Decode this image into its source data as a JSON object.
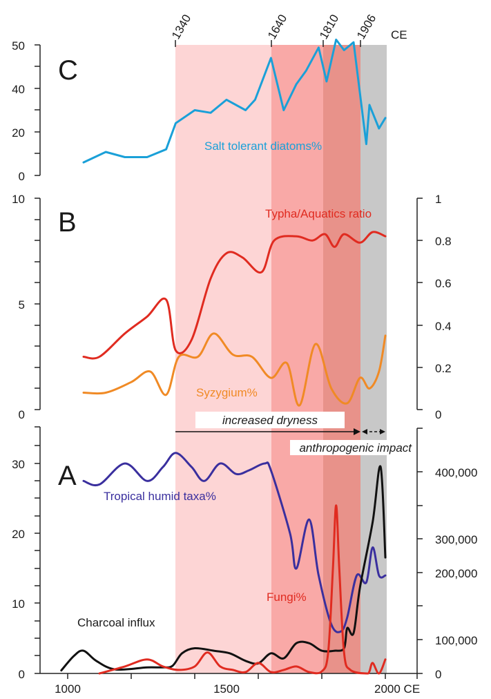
{
  "chart_data": [
    {
      "type": "line",
      "panel": "C",
      "x_unit": "CE",
      "top_labels": [
        "1340",
        "1640",
        "1810",
        "1906"
      ],
      "top_unit": "CE",
      "yticks": [
        "50",
        "40",
        "20",
        "0"
      ],
      "series": [
        {
          "name": "Salt tolerant diatoms%",
          "color": "#1aa0d8",
          "x": [
            1050,
            1120,
            1180,
            1250,
            1310,
            1340,
            1400,
            1450,
            1500,
            1560,
            1590,
            1640,
            1680,
            1720,
            1750,
            1790,
            1815,
            1845,
            1870,
            1900,
            1940,
            1950,
            1960,
            1980,
            2000
          ],
          "y": [
            5,
            9,
            7,
            7,
            10,
            20,
            25,
            24,
            29,
            25,
            29,
            45,
            25,
            35,
            40,
            49,
            36,
            52,
            48,
            51,
            12,
            27,
            24,
            18,
            22
          ]
        }
      ]
    },
    {
      "type": "line",
      "panel": "B",
      "yticks_left": [
        "10",
        "5",
        "0"
      ],
      "yticks_right": [
        "1",
        "0.8",
        "0.6",
        "0.4",
        "0.2",
        "0"
      ],
      "series": [
        {
          "name": "Typha/Aquatics ratio",
          "axis": "right",
          "color": "#e02b20",
          "x": [
            1050,
            1100,
            1180,
            1250,
            1310,
            1340,
            1390,
            1450,
            1500,
            1550,
            1610,
            1650,
            1720,
            1770,
            1810,
            1840,
            1870,
            1920,
            1960,
            2000
          ],
          "y": [
            0.25,
            0.25,
            0.36,
            0.44,
            0.52,
            0.28,
            0.33,
            0.62,
            0.74,
            0.72,
            0.65,
            0.8,
            0.82,
            0.8,
            0.83,
            0.77,
            0.83,
            0.79,
            0.84,
            0.82
          ]
        },
        {
          "name": "Syzygium%",
          "axis": "left",
          "color": "#f08a25",
          "x": [
            1050,
            1120,
            1200,
            1260,
            1310,
            1350,
            1410,
            1460,
            1520,
            1580,
            1640,
            1690,
            1730,
            1780,
            1830,
            1880,
            1920,
            1950,
            1980,
            2000
          ],
          "y": [
            0.8,
            0.8,
            1.3,
            1.8,
            0.7,
            2.5,
            2.5,
            3.6,
            2.6,
            2.5,
            1.5,
            2.2,
            0.2,
            3.1,
            1.0,
            0.3,
            1.5,
            1.0,
            1.8,
            3.5
          ]
        }
      ]
    },
    {
      "type": "line",
      "panel": "A",
      "yticks_left": [
        "30",
        "20",
        "10",
        "0"
      ],
      "yticks_right": [
        "400,000",
        "300,000",
        "200,000",
        "100,000",
        "0"
      ],
      "xticks": [
        "1000",
        "1500",
        "2000 CE"
      ],
      "series": [
        {
          "name": "Tropical humid taxa%",
          "axis": "left",
          "color": "#3a2f9e",
          "x": [
            1050,
            1100,
            1180,
            1250,
            1300,
            1340,
            1390,
            1430,
            1480,
            1530,
            1570,
            1620,
            1640,
            1700,
            1720,
            1760,
            1790,
            1830,
            1860,
            1880,
            1910,
            1940,
            1960,
            1980,
            2000
          ],
          "y": [
            27.5,
            27,
            30,
            27.5,
            29.5,
            31.5,
            29.5,
            27.5,
            30,
            28.5,
            29,
            30,
            29,
            20,
            15,
            22,
            14,
            7,
            6,
            8,
            14,
            13,
            18,
            14,
            14
          ]
        },
        {
          "name": "Charcoal influx",
          "axis": "right",
          "color": "#111111",
          "x": [
            980,
            1020,
            1050,
            1090,
            1150,
            1250,
            1300,
            1330,
            1360,
            1400,
            1460,
            1510,
            1560,
            1600,
            1640,
            1680,
            1720,
            1760,
            1800,
            1840,
            1870,
            1880,
            1900,
            1920,
            1960,
            1985,
            2000
          ],
          "y": [
            6000,
            35000,
            45000,
            25000,
            8000,
            12000,
            12000,
            15000,
            40000,
            50000,
            45000,
            40000,
            25000,
            20000,
            40000,
            30000,
            60000,
            60000,
            45000,
            45000,
            50000,
            90000,
            80000,
            170000,
            300000,
            410000,
            230000
          ]
        },
        {
          "name": "Fungi%",
          "axis": "left",
          "color": "#e02b20",
          "x": [
            1100,
            1180,
            1250,
            1300,
            1350,
            1400,
            1440,
            1480,
            1520,
            1560,
            1600,
            1640,
            1680,
            1720,
            1760,
            1800,
            1820,
            1835,
            1845,
            1855,
            1870,
            1890,
            1940,
            1950,
            1960,
            1980,
            2000
          ],
          "y": [
            0,
            1,
            2,
            1,
            0.5,
            1,
            3,
            1,
            0.5,
            0.2,
            1.5,
            0.2,
            0.5,
            1,
            0.2,
            0.3,
            3,
            15,
            24,
            15,
            3,
            0.5,
            0,
            0.3,
            1.5,
            0,
            2
          ]
        }
      ]
    }
  ],
  "annotations": {
    "increased_dryness": "increased dryness",
    "anthropogenic_impact": "anthropogenic impact",
    "panel_c": "C",
    "panel_b": "B",
    "panel_a": "A",
    "salt_label": "Salt tolerant diatoms%",
    "typha_label": "Typha/Aquatics ratio",
    "syzygium_label": "Syzygium%",
    "tropical_label": "Tropical humid taxa%",
    "fungi_label": "Fungi%",
    "charcoal_label": "Charcoal influx"
  },
  "colors": {
    "zone1": "#fdd5d5",
    "zone2": "#f9a9a7",
    "zone3": "#e8928a",
    "zone4": "#c8c8c8"
  }
}
